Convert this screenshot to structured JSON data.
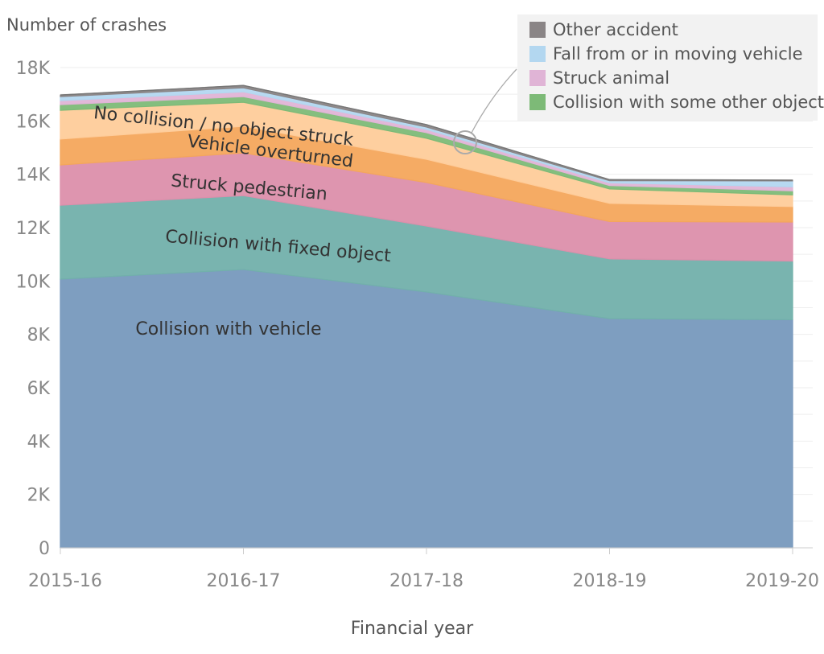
{
  "chart_data": {
    "type": "area",
    "stacked": true,
    "ylabel": "Number of crashes",
    "xlabel": "Financial year",
    "categories": [
      "2015-16",
      "2016-17",
      "2017-18",
      "2018-19",
      "2019-20"
    ],
    "ylim": [
      0,
      18000
    ],
    "yticks": [
      0,
      2000,
      4000,
      6000,
      8000,
      10000,
      12000,
      14000,
      16000,
      18000
    ],
    "ytick_labels": [
      "0",
      "2K",
      "4K",
      "6K",
      "8K",
      "10K",
      "12K",
      "14K",
      "16K",
      "18K"
    ],
    "grid": true,
    "legend_position": "top-right",
    "series": [
      {
        "name": "Collision with vehicle",
        "color": "#7799bd",
        "values": [
          10070,
          10430,
          9590,
          8590,
          8550
        ]
      },
      {
        "name": "Collision with fixed object",
        "color": "#72b0ab",
        "values": [
          2770,
          2770,
          2470,
          2240,
          2200
        ]
      },
      {
        "name": "Struck pedestrian",
        "color": "#dc8fab",
        "values": [
          1510,
          1600,
          1630,
          1400,
          1460
        ]
      },
      {
        "name": "Vehicle overturned",
        "color": "#f4a65c",
        "values": [
          970,
          1000,
          870,
          680,
          580
        ]
      },
      {
        "name": "No collision / no object struck",
        "color": "#fecc9a",
        "values": [
          1080,
          900,
          790,
          540,
          440
        ]
      },
      {
        "name": "Collision with some other object",
        "color": "#7dba77",
        "values": [
          210,
          210,
          210,
          130,
          150
        ]
      },
      {
        "name": "Struck animal",
        "color": "#e0b4d6",
        "values": [
          150,
          180,
          120,
          100,
          150
        ]
      },
      {
        "name": "Fall from or in moving vehicle",
        "color": "#b3d7f0",
        "values": [
          150,
          150,
          90,
          80,
          220
        ]
      },
      {
        "name": "Other accident",
        "color": "#8a8586",
        "values": [
          60,
          90,
          90,
          40,
          30
        ]
      }
    ],
    "legend_entries": [
      "Other accident",
      "Fall from or in moving vehicle",
      "Struck animal",
      "Collision with some other object"
    ],
    "inline_labels": [
      "Collision with vehicle",
      "Collision with fixed object",
      "Struck pedestrian",
      "Vehicle overturned",
      "No collision / no object struck"
    ]
  }
}
